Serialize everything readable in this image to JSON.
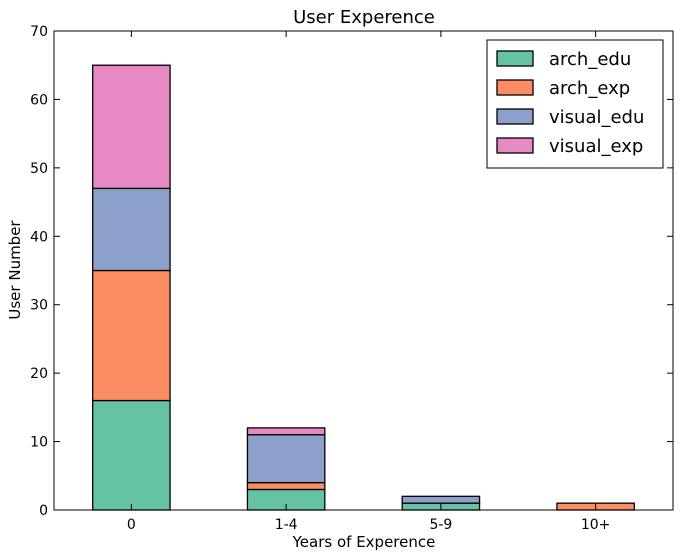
{
  "chart_data": {
    "type": "bar",
    "stacked": true,
    "title": "User Experence",
    "xlabel": "Years of Experence",
    "ylabel": "User Number",
    "categories": [
      "0",
      "1-4",
      "5-9",
      "10+"
    ],
    "series": [
      {
        "name": "arch_edu",
        "color": "#66c2a5",
        "values": [
          16,
          3,
          1,
          0
        ]
      },
      {
        "name": "arch_exp",
        "color": "#fc8d62",
        "values": [
          19,
          1,
          0,
          1
        ]
      },
      {
        "name": "visual_edu",
        "color": "#8da0cb",
        "values": [
          12,
          7,
          1,
          0
        ]
      },
      {
        "name": "visual_exp",
        "color": "#e78ac3",
        "values": [
          18,
          1,
          0,
          0
        ]
      }
    ],
    "ylim": [
      0,
      70
    ],
    "yticks": [
      0,
      10,
      20,
      30,
      40,
      50,
      60,
      70
    ],
    "grid": false,
    "legend_position": "top-right"
  }
}
